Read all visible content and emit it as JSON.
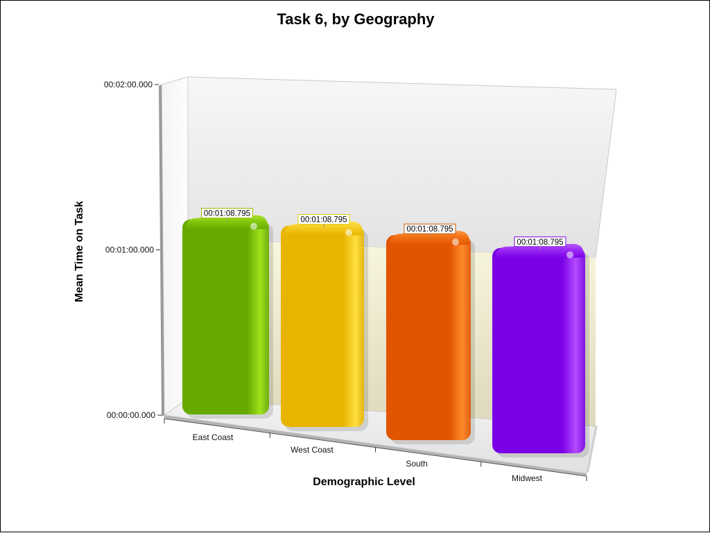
{
  "chart_data": {
    "type": "bar",
    "title": "Task 6, by Geography",
    "xlabel": "Demographic Level",
    "ylabel": "Mean Time on Task",
    "categories": [
      "East Coast",
      "West Coast",
      "South",
      "Midwest"
    ],
    "values_seconds": [
      68.795,
      68.795,
      68.795,
      68.795
    ],
    "data_labels": [
      "00:01:08.795",
      "00:01:08.795",
      "00:01:08.795",
      "00:01:08.795"
    ],
    "y_ticks": [
      "00:00:00.000",
      "00:01:00.000",
      "00:02:00.000"
    ],
    "y_tick_values_seconds": [
      0,
      60,
      120
    ],
    "ylim_seconds": [
      0,
      120
    ],
    "rendering": "3d",
    "grid": false,
    "legend": "none",
    "colors": {
      "bars": [
        "#66aa00",
        "#e8b400",
        "#e25500",
        "#7a00e6"
      ],
      "bar_highlights": [
        "#9fe21a",
        "#ffe040",
        "#ff8a2a",
        "#b44cff"
      ],
      "label_borders": [
        "#99bb00",
        "#ddcc00",
        "#cc5500",
        "#7a00e6"
      ],
      "back_wall": "#ececec",
      "back_wall_lower": "#f6f4d8",
      "floor": "#e8e8e8"
    }
  }
}
